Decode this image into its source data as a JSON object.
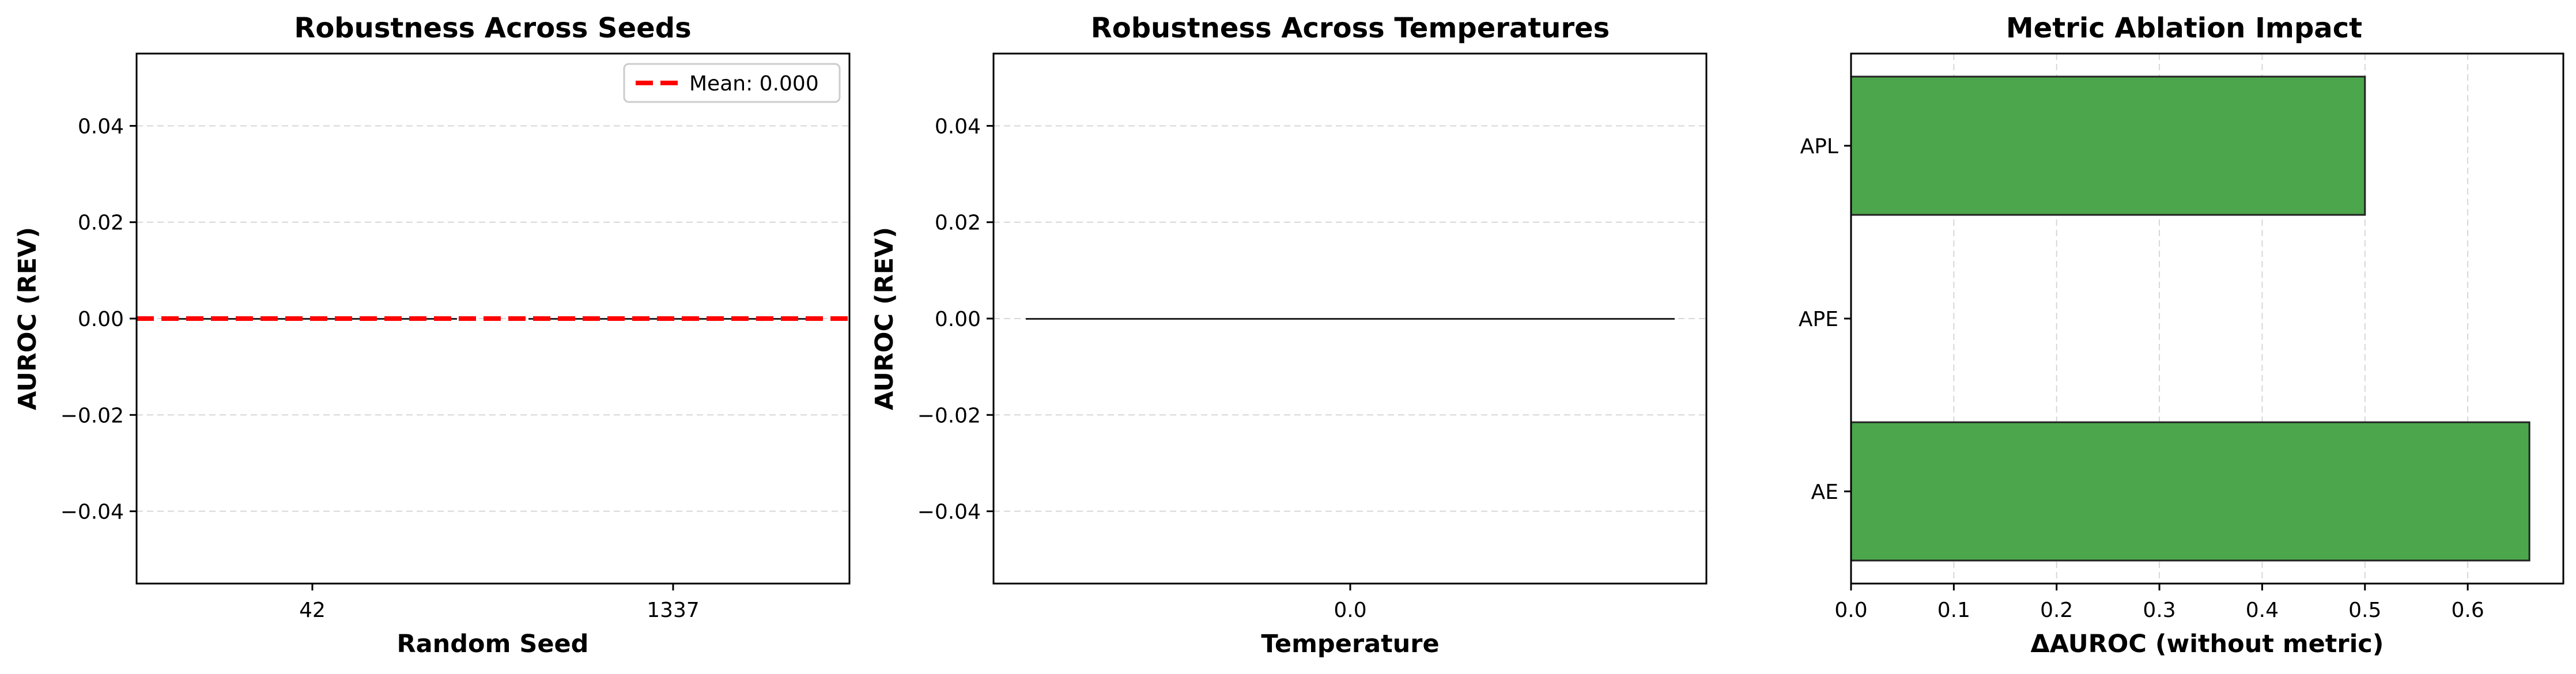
{
  "chart_data": [
    {
      "type": "bar",
      "title": "Robustness Across Seeds",
      "xlabel": "Random Seed",
      "ylabel": "AUROC (REV)",
      "categories": [
        "42",
        "1337"
      ],
      "values": [
        0.0,
        0.0
      ],
      "ylim": [
        -0.055,
        0.055
      ],
      "yticks": [
        0.04,
        0.02,
        0.0,
        -0.02,
        -0.04
      ],
      "ytick_labels": [
        "0.04",
        "0.02",
        "0.00",
        "−0.02",
        "−0.04"
      ],
      "grid": "y dashed",
      "mean_line": {
        "value": 0.0,
        "label": "Mean: 0.000",
        "color": "#ff0000"
      },
      "legend": {
        "placement": "top-right",
        "entries": [
          "Mean: 0.000"
        ]
      }
    },
    {
      "type": "bar",
      "title": "Robustness Across Temperatures",
      "xlabel": "Temperature",
      "ylabel": "AUROC (REV)",
      "categories": [
        "0.0"
      ],
      "values": [
        0.0
      ],
      "ylim": [
        -0.055,
        0.055
      ],
      "yticks": [
        0.04,
        0.02,
        0.0,
        -0.02,
        -0.04
      ],
      "ytick_labels": [
        "0.04",
        "0.02",
        "0.00",
        "−0.02",
        "−0.04"
      ],
      "grid": "y dashed"
    },
    {
      "type": "bar",
      "orientation": "horizontal",
      "title": "Metric Ablation Impact",
      "xlabel": "ΔAUROC (without metric)",
      "categories": [
        "AE",
        "APE",
        "APL"
      ],
      "values": [
        0.66,
        0.0,
        0.5
      ],
      "xlim": [
        0.0,
        0.693
      ],
      "xticks": [
        0.0,
        0.1,
        0.2,
        0.3,
        0.4,
        0.5,
        0.6
      ],
      "xtick_labels": [
        "0.0",
        "0.1",
        "0.2",
        "0.3",
        "0.4",
        "0.5",
        "0.6"
      ],
      "grid": "x dashed",
      "bar_color": "#4ca64c"
    }
  ]
}
